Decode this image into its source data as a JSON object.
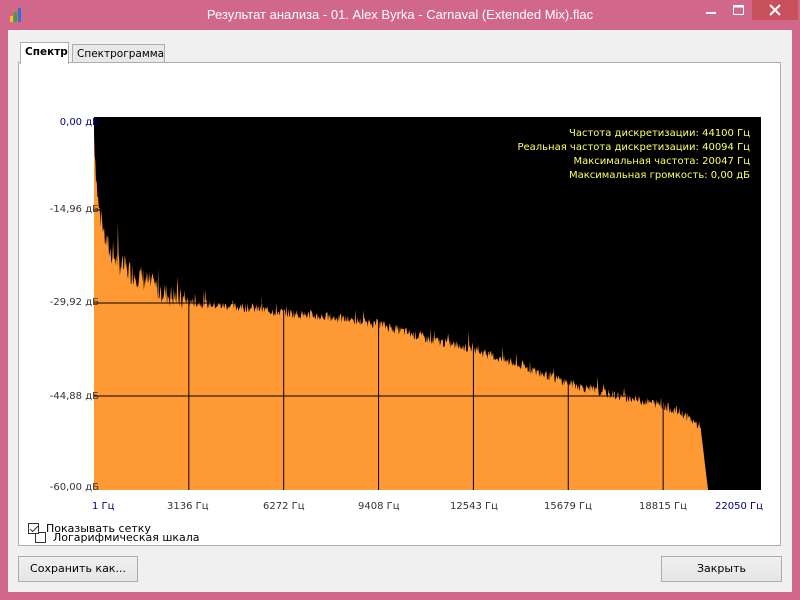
{
  "window": {
    "title": "Результат анализа - 01. Alex Byrka - Carnaval (Extended Mix).flac"
  },
  "tabs": [
    {
      "label": "Спектр",
      "active": true
    },
    {
      "label": "Спектрограмма",
      "active": false
    }
  ],
  "info": {
    "sample_rate": "Частота дискретизации: 44100 Гц",
    "real_sample_rate": "Реальная частота дискретизации: 40094 Гц",
    "max_frequency": "Максимальная частота: 20047 Гц",
    "max_volume": "Максимальная громкость: 0,00 дБ"
  },
  "chart_data": {
    "type": "area",
    "x_ticks": [
      "1 Гц",
      "3136 Гц",
      "6272 Гц",
      "9408 Гц",
      "12543 Гц",
      "15679 Гц",
      "18815 Гц",
      "22050 Гц"
    ],
    "y_ticks": [
      "0,00 дБ",
      "-14,96 дБ",
      "-29,92 дБ",
      "-44,88 дБ",
      "-60,00 дБ"
    ],
    "xlim": [
      1,
      22050
    ],
    "ylim": [
      -60,
      0
    ],
    "grid": true,
    "x": [
      1,
      60,
      150,
      300,
      500,
      800,
      1200,
      1600,
      2000,
      2500,
      3136,
      4000,
      5000,
      6272,
      7000,
      8000,
      9408,
      10000,
      11000,
      12543,
      13500,
      14500,
      15679,
      16500,
      17500,
      18815,
      19500,
      20047,
      20300
    ],
    "values": [
      -2,
      -8,
      -14,
      -18,
      -21,
      -23,
      -24.5,
      -25.5,
      -27,
      -28.3,
      -29.5,
      -30.1,
      -30.5,
      -31.3,
      -31.7,
      -32.2,
      -33.1,
      -34,
      -35.5,
      -37.2,
      -38.9,
      -40.6,
      -42.6,
      -43.8,
      -44.9,
      -46.2,
      -47.7,
      -49.7,
      -60
    ],
    "fill_color": "#ff9933",
    "background": "#000000",
    "info_color": "#ffff66"
  },
  "options": {
    "log_scale_label": "Логарифмическая шкала",
    "log_scale_checked": false,
    "show_grid_label": "Показывать сетку",
    "show_grid_checked": true
  },
  "buttons": {
    "save_label": "Сохранить как...",
    "close_label": "Закрыть"
  }
}
